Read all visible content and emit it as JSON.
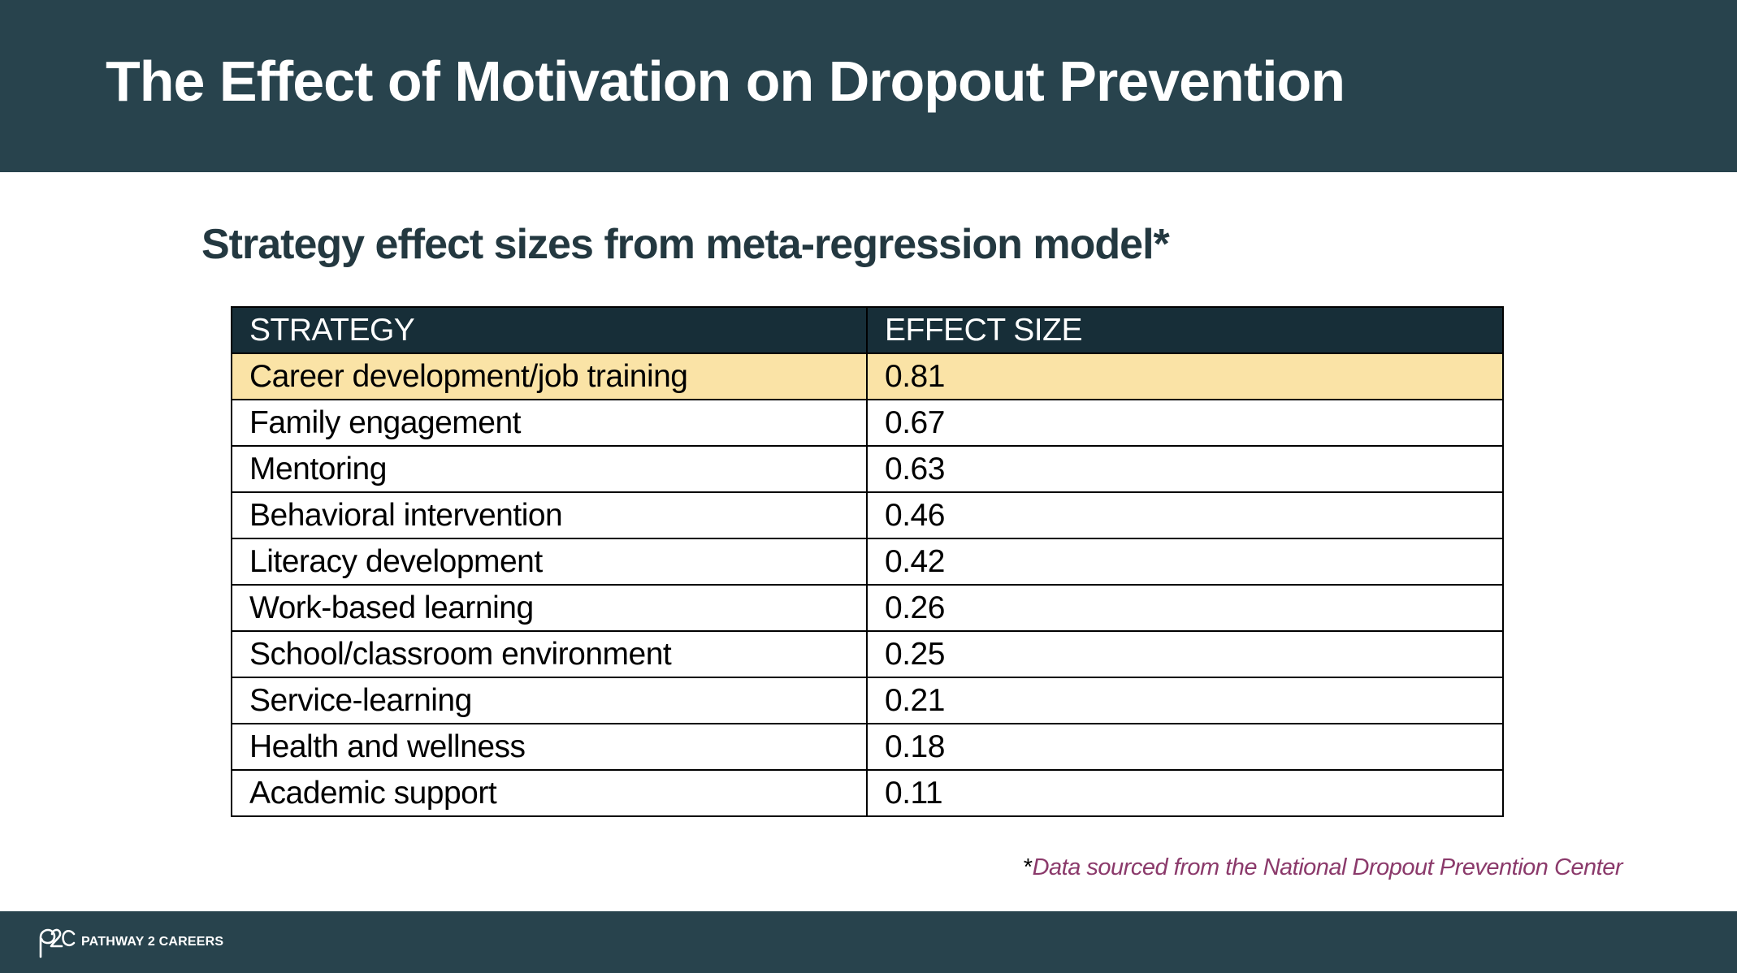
{
  "slide": {
    "title": "The Effect of Motivation on Dropout Prevention",
    "subtitle": "Strategy effect sizes from meta-regression model*"
  },
  "table": {
    "headers": [
      "STRATEGY",
      "EFFECT SIZE"
    ],
    "rows": [
      {
        "strategy": "Career development/job training",
        "effect": "0.81"
      },
      {
        "strategy": "Family engagement",
        "effect": "0.67"
      },
      {
        "strategy": "Mentoring",
        "effect": "0.63"
      },
      {
        "strategy": "Behavioral intervention",
        "effect": "0.46"
      },
      {
        "strategy": "Literacy development",
        "effect": "0.42"
      },
      {
        "strategy": "Work-based learning",
        "effect": "0.26"
      },
      {
        "strategy": "School/classroom environment",
        "effect": "0.25"
      },
      {
        "strategy": "Service-learning",
        "effect": "0.21"
      },
      {
        "strategy": "Health and wellness",
        "effect": "0.18"
      },
      {
        "strategy": "Academic support",
        "effect": "0.11"
      }
    ],
    "highlighted_row": 0
  },
  "chart_data": {
    "type": "table",
    "columns": [
      "STRATEGY",
      "EFFECT SIZE"
    ],
    "rows": [
      [
        "Career development/job training",
        0.81
      ],
      [
        "Family engagement",
        0.67
      ],
      [
        "Mentoring",
        0.63
      ],
      [
        "Behavioral intervention",
        0.46
      ],
      [
        "Literacy development",
        0.42
      ],
      [
        "Work-based learning",
        0.26
      ],
      [
        "School/classroom environment",
        0.25
      ],
      [
        "Service-learning",
        0.21
      ],
      [
        "Health and wellness",
        0.18
      ],
      [
        "Academic support",
        0.11
      ]
    ]
  },
  "footnote": {
    "star": "*",
    "text": "Data sourced from the National Dropout Prevention Center"
  },
  "footer": {
    "logo_mark": "p2c",
    "logo_text": "PATHWAY 2 CAREERS"
  },
  "colors": {
    "header_band": "#28434d",
    "table_header": "#172e38",
    "highlight_row": "#fae3a6",
    "footnote_text": "#8b3a6b"
  }
}
